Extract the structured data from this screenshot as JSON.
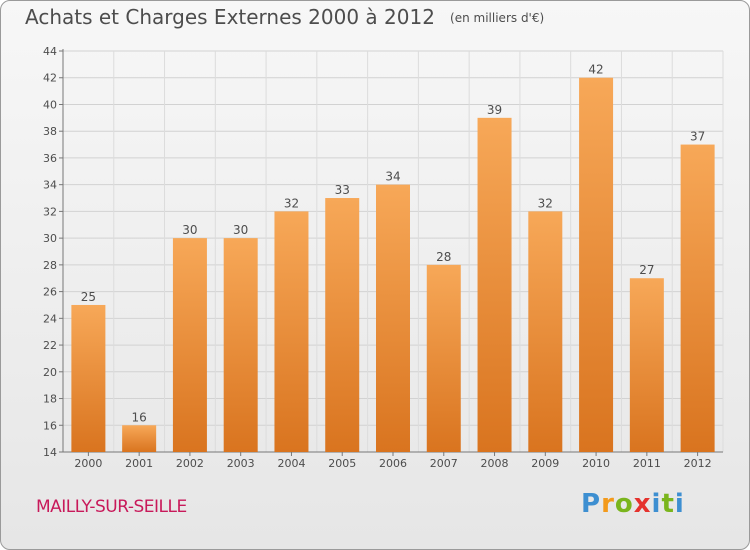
{
  "title": "Achats et Charges Externes 2000 à 2012",
  "unit_label": "(en milliers d'€)",
  "town": "MAILLY-SUR-SEILLE",
  "logo_text": "Proxiti",
  "colors": {
    "bar_light": "#f7a858",
    "bar_dark": "#d9741f",
    "town": "#c8195a",
    "text": "#4d4d4d"
  },
  "chart_data": {
    "type": "bar",
    "title": "Achats et Charges Externes 2000 à 2012",
    "subtitle": "(en milliers d'€)",
    "categories": [
      "2000",
      "2001",
      "2002",
      "2003",
      "2004",
      "2005",
      "2006",
      "2007",
      "2008",
      "2009",
      "2010",
      "2011",
      "2012"
    ],
    "values": [
      25,
      16,
      30,
      30,
      32,
      33,
      34,
      28,
      39,
      32,
      42,
      27,
      37
    ],
    "ylim": [
      14,
      44
    ],
    "yticks": [
      14,
      16,
      18,
      20,
      22,
      24,
      26,
      28,
      30,
      32,
      34,
      36,
      38,
      40,
      42,
      44
    ],
    "grid": true,
    "data_labels": true
  }
}
